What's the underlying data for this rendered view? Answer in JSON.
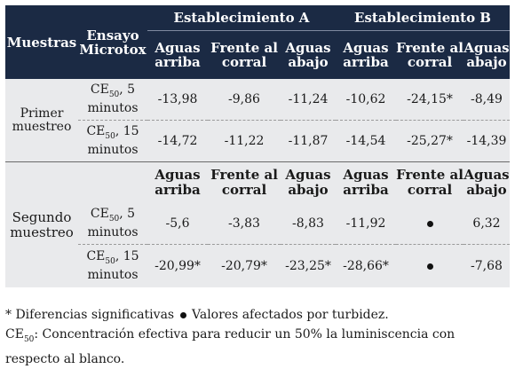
{
  "header": {
    "muestras": "Muestras",
    "ensayo": "Ensayo Microtox",
    "estab_a": "Establecimiento A",
    "estab_b": "Establecimiento B",
    "cols": [
      "Aguas arriba",
      "Frente al corral",
      "Aguas abajo",
      "Aguas arriba",
      "Frente al corral",
      "Aguas abajo"
    ]
  },
  "primer": {
    "label": "Primer muestreo",
    "rows": [
      {
        "ensayo_pre": "CE",
        "ensayo_sub": "50",
        "ensayo_post": ", 5 minutos",
        "values": [
          "-13,98",
          "-9,86",
          "-11,24",
          "-10,62",
          "-24,15*",
          "-8,49"
        ]
      },
      {
        "ensayo_pre": "CE",
        "ensayo_sub": "50",
        "ensayo_post": ", 15 minutos",
        "values": [
          "-14,72",
          "-11,22",
          "-11,87",
          "-14,54",
          "-25,27*",
          "-14,39"
        ]
      }
    ]
  },
  "segundo": {
    "label": "Segundo muestreo",
    "cols": [
      "Aguas arriba",
      "Frente al corral",
      "Aguas abajo",
      "Aguas arriba",
      "Frente al corral",
      "Aguas abajo"
    ],
    "rows": [
      {
        "ensayo_pre": "CE",
        "ensayo_sub": "50",
        "ensayo_post": ", 5 minutos",
        "values": [
          "-5,6",
          "-3,83",
          "-8,83",
          "-11,92",
          "•",
          "6,32"
        ]
      },
      {
        "ensayo_pre": "CE",
        "ensayo_sub": "50",
        "ensayo_post": ", 15 minutos",
        "values": [
          "-20,99*",
          "-20,79*",
          "-23,25*",
          "-28,66*",
          "•",
          "-7,68"
        ]
      }
    ]
  },
  "notes": {
    "line1_a": "* Diferencias significativas",
    "line1_b": "Valores afectados por turbidez.",
    "line2_pre": "CE",
    "line2_sub": "50",
    "line2_post": ": Concentración efectiva para reducir un 50% la luminiscencia con respecto al blanco."
  }
}
